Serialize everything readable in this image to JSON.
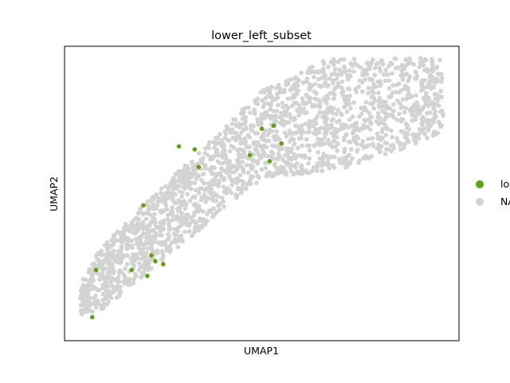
{
  "chart_data": {
    "type": "scatter",
    "title": "lower_left_subset",
    "xlabel": "UMAP1",
    "ylabel": "UMAP2",
    "xticks": [],
    "yticks": [],
    "grid": false,
    "legend_position": "right",
    "xlim": [
      0,
      100
    ],
    "ylim": [
      0,
      100
    ],
    "legend": [
      {
        "label": "lo",
        "color": "#5fa30f"
      },
      {
        "label": "NA",
        "color": "#d3d3d3"
      }
    ],
    "series": [
      {
        "name": "lo",
        "color": "#5fa30f",
        "points": [
          [
            7,
            8
          ],
          [
            8,
            24
          ],
          [
            17,
            24
          ],
          [
            21,
            22
          ],
          [
            22,
            29
          ],
          [
            23,
            27
          ],
          [
            25,
            26
          ],
          [
            20,
            46
          ],
          [
            29,
            66
          ],
          [
            33,
            65
          ],
          [
            34,
            59
          ],
          [
            47,
            63
          ],
          [
            50,
            72
          ],
          [
            52,
            61
          ],
          [
            53,
            73
          ],
          [
            55,
            67
          ]
        ]
      },
      {
        "name": "NA",
        "color": "#d3d3d3",
        "points": [],
        "note_points_generated": false
      }
    ]
  }
}
